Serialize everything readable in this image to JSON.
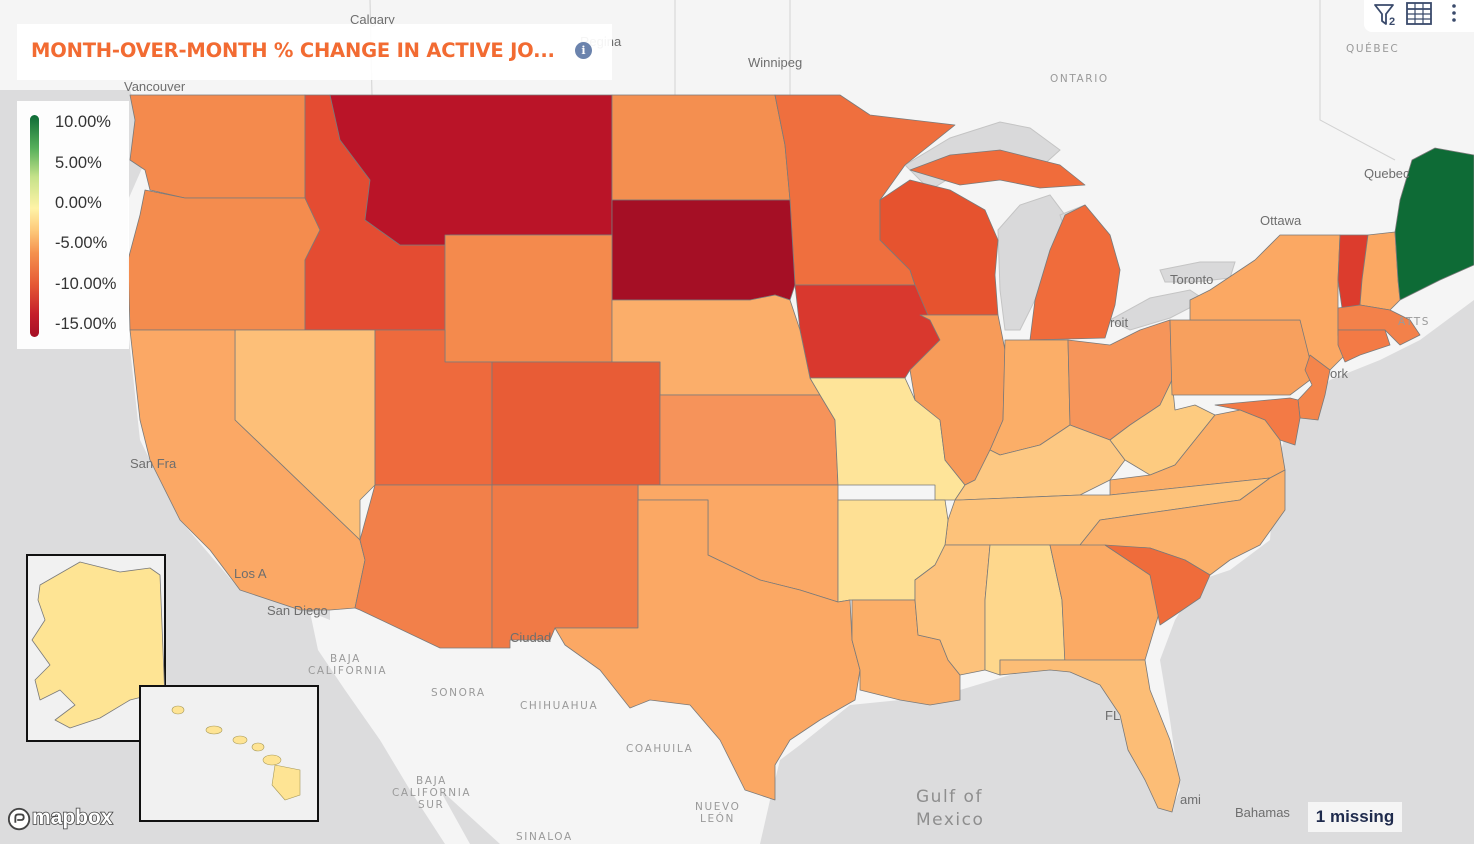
{
  "title": "MONTH-OVER-MONTH % CHANGE IN ACTIVE JO...",
  "info_icon": "info-icon",
  "legend": {
    "labels": [
      "10.00%",
      "5.00%",
      "0.00%",
      "-5.00%",
      "-10.00%",
      "-15.00%"
    ],
    "color_scale": [
      "#0e6b36",
      "#57b05b",
      "#fff3a6",
      "#fdc97a",
      "#f5924f",
      "#e65a35",
      "#c41e2b",
      "#a50f25"
    ]
  },
  "toolbar": {
    "filter_icon": "filter-icon",
    "filter_count": "2",
    "table_icon": "table-icon",
    "more_icon": "more-vertical-icon"
  },
  "missing_badge": "1 missing",
  "attribution": "mapbox",
  "basemap_labels": {
    "places": [
      "Calgary",
      "Regina",
      "Winnipeg",
      "Vancouver",
      "Quebec",
      "Ottawa",
      "Toronto",
      "San Fra",
      "Los A",
      "San Diego",
      "Ciudad",
      "Bahamas",
      "ami",
      "roit",
      "ork",
      "FL"
    ],
    "regions": [
      "QUÉBEC",
      "ONTARIO",
      "BAJA",
      "CALIFORNIA",
      "SONORA",
      "CHIHUAHUA",
      "COAHUILA",
      "BAJA",
      "CALIFORNIA",
      "SUR",
      "NUEVO",
      "LEÓN",
      "SINALOA",
      "ATTS"
    ],
    "water": [
      "Gulf of",
      "Mexico"
    ]
  },
  "colors": {
    "land": "#f4f4f4",
    "water": "#d9d9da",
    "title_accent": "#f26b32"
  }
}
